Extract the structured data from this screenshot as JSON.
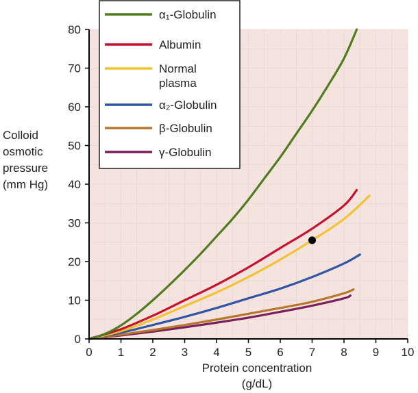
{
  "chart_data": {
    "type": "line",
    "xlabel_line1": "Protein concentration",
    "xlabel_line2": "(g/dL)",
    "ylabel_lines": [
      "Colloid",
      "osmotic",
      "pressure",
      "(mm Hg)"
    ],
    "xlim": [
      0,
      10
    ],
    "ylim": [
      0,
      80
    ],
    "x_ticks": [
      "0",
      "1",
      "2",
      "3",
      "4",
      "5",
      "6",
      "7",
      "8",
      "9",
      "10"
    ],
    "y_ticks": [
      "0",
      "10",
      "20",
      "30",
      "40",
      "50",
      "60",
      "70",
      "80"
    ],
    "grid": false,
    "legend_position": "top-left",
    "background_color": "#f4e3df",
    "series": [
      {
        "name_lines": [
          "α₁-Globulin"
        ],
        "color": "#4f7d1e",
        "points": [
          [
            0,
            0
          ],
          [
            0.5,
            1.3
          ],
          [
            1,
            3.5
          ],
          [
            1.5,
            6.5
          ],
          [
            2,
            10
          ],
          [
            2.5,
            13.8
          ],
          [
            3,
            17.8
          ],
          [
            3.5,
            22
          ],
          [
            4,
            26.5
          ],
          [
            4.5,
            31
          ],
          [
            5,
            36
          ],
          [
            5.5,
            41.5
          ],
          [
            6,
            47
          ],
          [
            6.5,
            53
          ],
          [
            7,
            59
          ],
          [
            7.5,
            65.5
          ],
          [
            8,
            72.5
          ],
          [
            8.4,
            80
          ]
        ]
      },
      {
        "name_lines": [
          "Albumin"
        ],
        "color": "#c8102e",
        "points": [
          [
            0,
            0
          ],
          [
            1,
            2.5
          ],
          [
            2,
            6
          ],
          [
            3,
            10
          ],
          [
            4,
            14
          ],
          [
            5,
            18.5
          ],
          [
            6,
            23.5
          ],
          [
            7,
            28.5
          ],
          [
            8,
            34.5
          ],
          [
            8.4,
            38.5
          ]
        ]
      },
      {
        "name_lines": [
          "Normal",
          "plasma"
        ],
        "color": "#f2c230",
        "points": [
          [
            0,
            0
          ],
          [
            1,
            2
          ],
          [
            2,
            5
          ],
          [
            3,
            8.5
          ],
          [
            4,
            12
          ],
          [
            5,
            16
          ],
          [
            6,
            20.5
          ],
          [
            7,
            25.5
          ],
          [
            8,
            31
          ],
          [
            8.8,
            37
          ]
        ]
      },
      {
        "name_lines": [
          "α₂-Globulin"
        ],
        "color": "#2f55a4",
        "points": [
          [
            0,
            0
          ],
          [
            1,
            1.6
          ],
          [
            2,
            3.6
          ],
          [
            3,
            5.7
          ],
          [
            4,
            8
          ],
          [
            5,
            10.5
          ],
          [
            6,
            13
          ],
          [
            7,
            16
          ],
          [
            8,
            19.5
          ],
          [
            8.5,
            21.8
          ]
        ]
      },
      {
        "name_lines": [
          "β-Globulin"
        ],
        "color": "#b5782b",
        "points": [
          [
            0,
            0
          ],
          [
            1,
            1.1
          ],
          [
            2,
            2.3
          ],
          [
            3,
            3.6
          ],
          [
            4,
            5
          ],
          [
            5,
            6.5
          ],
          [
            6,
            8
          ],
          [
            7,
            9.6
          ],
          [
            8,
            11.8
          ],
          [
            8.3,
            12.8
          ]
        ]
      },
      {
        "name_lines": [
          "γ-Globulin"
        ],
        "color": "#7a1f5c",
        "points": [
          [
            0,
            0
          ],
          [
            1,
            0.9
          ],
          [
            2,
            1.9
          ],
          [
            3,
            3
          ],
          [
            4,
            4.2
          ],
          [
            5,
            5.5
          ],
          [
            6,
            7
          ],
          [
            7,
            8.6
          ],
          [
            8,
            10.5
          ],
          [
            8.2,
            11.2
          ]
        ]
      }
    ],
    "marker": {
      "x": 7.0,
      "y": 25.5,
      "color": "#000000"
    }
  }
}
